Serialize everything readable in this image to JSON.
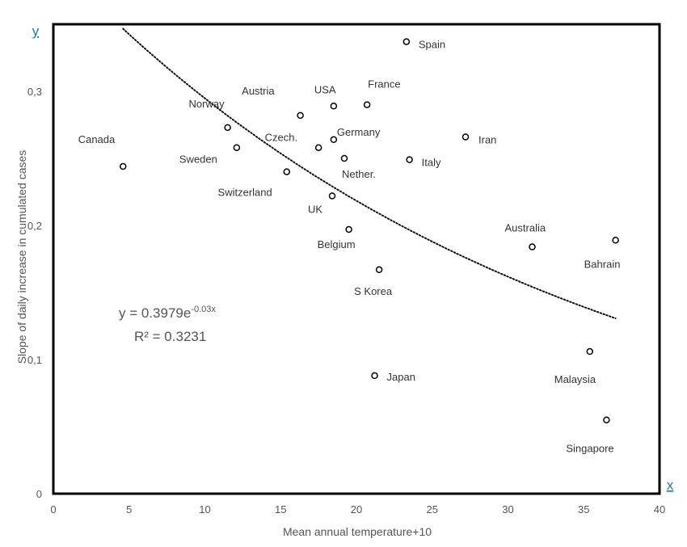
{
  "chart_data": {
    "type": "scatter",
    "xlabel": "Mean annual temperature+10",
    "ylabel": "Slope of daily increase in cumulated cases",
    "x_axis_letter": "x",
    "y_axis_letter": "y",
    "xlim": [
      0,
      40
    ],
    "ylim": [
      0,
      0.35
    ],
    "x_ticks": [
      {
        "v": 0,
        "label": "0"
      },
      {
        "v": 5,
        "label": "5"
      },
      {
        "v": 10,
        "label": "10"
      },
      {
        "v": 15,
        "label": "15"
      },
      {
        "v": 20,
        "label": "20"
      },
      {
        "v": 25,
        "label": "25"
      },
      {
        "v": 30,
        "label": "30"
      },
      {
        "v": 35,
        "label": "35"
      },
      {
        "v": 40,
        "label": "40"
      }
    ],
    "y_ticks": [
      {
        "v": 0,
        "label": "0"
      },
      {
        "v": 0.1,
        "label": "0,1"
      },
      {
        "v": 0.2,
        "label": "0,2"
      },
      {
        "v": 0.3,
        "label": "0,3"
      }
    ],
    "grid": false,
    "points": [
      {
        "label": "Canada",
        "x": 4.6,
        "y": 0.244
      },
      {
        "label": "Norway",
        "x": 11.5,
        "y": 0.273
      },
      {
        "label": "Sweden",
        "x": 12.1,
        "y": 0.258
      },
      {
        "label": "Switzerland",
        "x": 15.4,
        "y": 0.24
      },
      {
        "label": "Austria",
        "x": 16.3,
        "y": 0.282
      },
      {
        "label": "Czech.",
        "x": 17.5,
        "y": 0.258
      },
      {
        "label": "USA",
        "x": 18.5,
        "y": 0.289
      },
      {
        "label": "Germany",
        "x": 18.5,
        "y": 0.264
      },
      {
        "label": "UK",
        "x": 18.4,
        "y": 0.222
      },
      {
        "label": "Nether.",
        "x": 19.2,
        "y": 0.25
      },
      {
        "label": "Belgium",
        "x": 19.5,
        "y": 0.197
      },
      {
        "label": "France",
        "x": 20.7,
        "y": 0.29
      },
      {
        "label": "S Korea",
        "x": 21.5,
        "y": 0.167
      },
      {
        "label": "Japan",
        "x": 21.2,
        "y": 0.088
      },
      {
        "label": "Spain",
        "x": 23.3,
        "y": 0.337
      },
      {
        "label": "Italy",
        "x": 23.5,
        "y": 0.249
      },
      {
        "label": "Iran",
        "x": 27.2,
        "y": 0.266
      },
      {
        "label": "Australia",
        "x": 31.6,
        "y": 0.184
      },
      {
        "label": "Bahrain",
        "x": 37.1,
        "y": 0.189
      },
      {
        "label": "Malaysia",
        "x": 35.4,
        "y": 0.106
      },
      {
        "label": "Singapore",
        "x": 36.5,
        "y": 0.055
      }
    ],
    "trendline": {
      "type": "exponential",
      "a": 0.3979,
      "b": -0.03,
      "x_range": [
        4.6,
        37.1
      ],
      "style": "dotted"
    },
    "equation_text": "y = 0.3979e",
    "equation_exponent": "-0.03x",
    "r2_text": "R² = 0.3231",
    "colors": {
      "axis_letter": "#1a7fa0",
      "text": "#555555",
      "frame": "#000000"
    }
  }
}
